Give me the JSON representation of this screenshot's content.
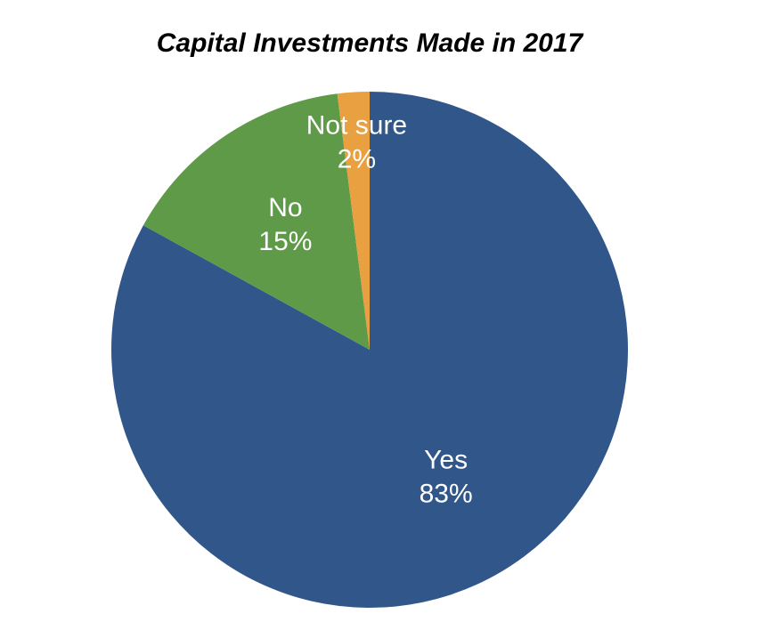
{
  "chart_data": {
    "type": "pie",
    "title": "Capital Investments Made in 2017",
    "categories": [
      "Yes",
      "No",
      "Not sure"
    ],
    "values": [
      83,
      15,
      2
    ],
    "value_labels": [
      "83%",
      "15%",
      "2%"
    ],
    "colors": [
      "#31568a",
      "#5e9a48",
      "#e8a040"
    ]
  }
}
